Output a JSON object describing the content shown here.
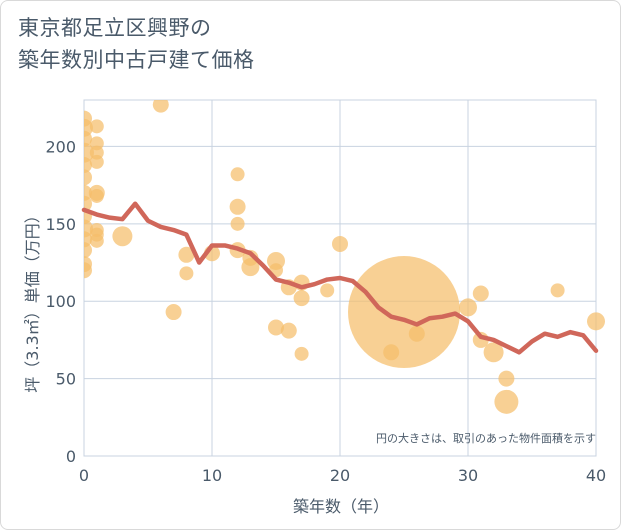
{
  "title": {
    "line1": "東京都足立区興野の",
    "line2": "築年数別中古戸建て価格"
  },
  "colors": {
    "bubble": "#f5be6b",
    "line": "#d0675a",
    "grid": "#c8d3e0",
    "text": "#4a5a6a"
  },
  "chart_data": {
    "type": "scatter",
    "xlabel": "築年数（年）",
    "ylabel": "坪（3.3㎡）単価（万円）",
    "xlim": [
      0,
      40
    ],
    "ylim": [
      0,
      230
    ],
    "xticks": [
      0,
      10,
      20,
      30,
      40
    ],
    "yticks": [
      0,
      50,
      100,
      150,
      200
    ],
    "grid": true,
    "note": "円の大きさは、取引のあった物件面積を示す",
    "scatter_points": [
      {
        "x": 0,
        "y": 218,
        "r": 8
      },
      {
        "x": 0,
        "y": 212,
        "r": 9
      },
      {
        "x": 0,
        "y": 205,
        "r": 8
      },
      {
        "x": 0,
        "y": 196,
        "r": 10
      },
      {
        "x": 0,
        "y": 188,
        "r": 8
      },
      {
        "x": 0,
        "y": 180,
        "r": 8
      },
      {
        "x": 0,
        "y": 170,
        "r": 8
      },
      {
        "x": 0,
        "y": 163,
        "r": 8
      },
      {
        "x": 0,
        "y": 155,
        "r": 8
      },
      {
        "x": 0,
        "y": 147,
        "r": 9
      },
      {
        "x": 0,
        "y": 140,
        "r": 8
      },
      {
        "x": 0,
        "y": 133,
        "r": 8
      },
      {
        "x": 0,
        "y": 124,
        "r": 8
      },
      {
        "x": 0,
        "y": 120,
        "r": 8
      },
      {
        "x": 1,
        "y": 213,
        "r": 7
      },
      {
        "x": 1,
        "y": 202,
        "r": 7
      },
      {
        "x": 1,
        "y": 196,
        "r": 7
      },
      {
        "x": 1,
        "y": 190,
        "r": 7
      },
      {
        "x": 1,
        "y": 170,
        "r": 8
      },
      {
        "x": 1,
        "y": 168,
        "r": 7
      },
      {
        "x": 1,
        "y": 146,
        "r": 7
      },
      {
        "x": 1,
        "y": 143,
        "r": 7
      },
      {
        "x": 1,
        "y": 139,
        "r": 7
      },
      {
        "x": 3,
        "y": 142,
        "r": 10
      },
      {
        "x": 6,
        "y": 227,
        "r": 8
      },
      {
        "x": 7,
        "y": 93,
        "r": 8
      },
      {
        "x": 8,
        "y": 130,
        "r": 8
      },
      {
        "x": 8,
        "y": 118,
        "r": 7
      },
      {
        "x": 10,
        "y": 131,
        "r": 8
      },
      {
        "x": 12,
        "y": 182,
        "r": 7
      },
      {
        "x": 12,
        "y": 161,
        "r": 8
      },
      {
        "x": 12,
        "y": 150,
        "r": 7
      },
      {
        "x": 12,
        "y": 133,
        "r": 8
      },
      {
        "x": 13,
        "y": 128,
        "r": 8
      },
      {
        "x": 13,
        "y": 122,
        "r": 9
      },
      {
        "x": 15,
        "y": 126,
        "r": 9
      },
      {
        "x": 15,
        "y": 120,
        "r": 7
      },
      {
        "x": 15,
        "y": 83,
        "r": 8
      },
      {
        "x": 16,
        "y": 109,
        "r": 8
      },
      {
        "x": 16,
        "y": 81,
        "r": 8
      },
      {
        "x": 17,
        "y": 112,
        "r": 8
      },
      {
        "x": 17,
        "y": 102,
        "r": 8
      },
      {
        "x": 17,
        "y": 66,
        "r": 7
      },
      {
        "x": 19,
        "y": 107,
        "r": 7
      },
      {
        "x": 20,
        "y": 137,
        "r": 8
      },
      {
        "x": 24,
        "y": 67,
        "r": 8
      },
      {
        "x": 25,
        "y": 93,
        "r": 56
      },
      {
        "x": 26,
        "y": 79,
        "r": 8
      },
      {
        "x": 30,
        "y": 96,
        "r": 9
      },
      {
        "x": 31,
        "y": 105,
        "r": 8
      },
      {
        "x": 31,
        "y": 75,
        "r": 8
      },
      {
        "x": 32,
        "y": 67,
        "r": 10
      },
      {
        "x": 33,
        "y": 50,
        "r": 8
      },
      {
        "x": 33,
        "y": 35,
        "r": 12
      },
      {
        "x": 37,
        "y": 107,
        "r": 7
      },
      {
        "x": 40,
        "y": 87,
        "r": 9
      }
    ],
    "series": [
      {
        "values": [
          [
            0,
            159
          ],
          [
            1,
            156
          ],
          [
            2,
            154
          ],
          [
            3,
            153
          ],
          [
            4,
            163
          ],
          [
            5,
            152
          ],
          [
            6,
            148
          ],
          [
            7,
            146
          ],
          [
            8,
            143
          ],
          [
            9,
            125
          ],
          [
            10,
            136
          ],
          [
            11,
            136
          ],
          [
            12,
            134
          ],
          [
            13,
            131
          ],
          [
            14,
            123
          ],
          [
            15,
            114
          ],
          [
            16,
            112
          ],
          [
            17,
            109
          ],
          [
            18,
            111
          ],
          [
            19,
            114
          ],
          [
            20,
            115
          ],
          [
            21,
            113
          ],
          [
            22,
            106
          ],
          [
            23,
            96
          ],
          [
            24,
            90
          ],
          [
            25,
            88
          ],
          [
            26,
            85
          ],
          [
            27,
            89
          ],
          [
            28,
            90
          ],
          [
            29,
            92
          ],
          [
            30,
            87
          ],
          [
            31,
            77
          ],
          [
            32,
            75
          ],
          [
            33,
            71
          ],
          [
            34,
            67
          ],
          [
            35,
            74
          ],
          [
            36,
            79
          ],
          [
            37,
            77
          ],
          [
            38,
            80
          ],
          [
            39,
            78
          ],
          [
            40,
            68
          ]
        ]
      }
    ]
  }
}
